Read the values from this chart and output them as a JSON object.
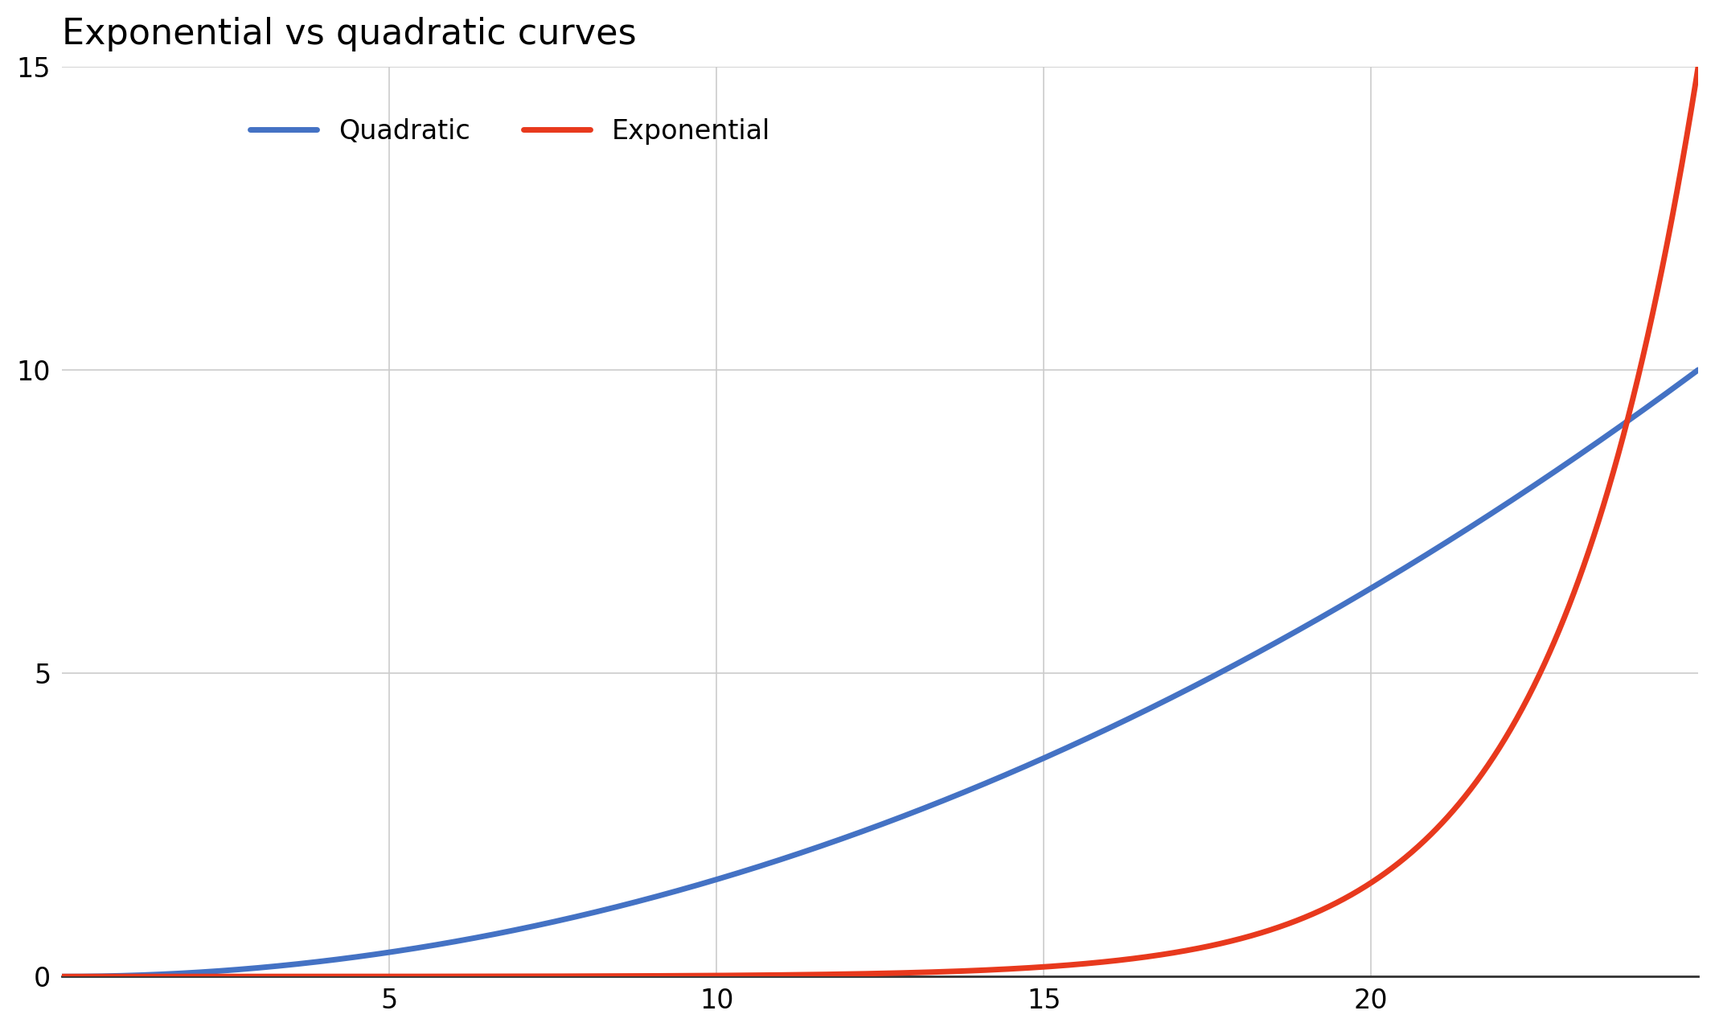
{
  "title": "Exponential vs quadratic curves",
  "title_fontsize": 32,
  "title_fontweight": "normal",
  "background_color": "#ffffff",
  "grid_color": "#cccccc",
  "bottom_spine_color": "#333333",
  "quadratic_color": "#4472C4",
  "exponential_color": "#E8391D",
  "line_width": 5,
  "x_min": 0,
  "x_max": 25,
  "y_min": 0,
  "y_max": 15,
  "x_ticks": [
    5,
    10,
    15,
    20
  ],
  "y_ticks": [
    0,
    5,
    10,
    15
  ],
  "tick_fontsize": 24,
  "legend_fontsize": 24,
  "quadratic_label": "Quadratic",
  "exponential_label": "Exponential",
  "quad_scale": 62.5,
  "exp_coeff": 2.2
}
